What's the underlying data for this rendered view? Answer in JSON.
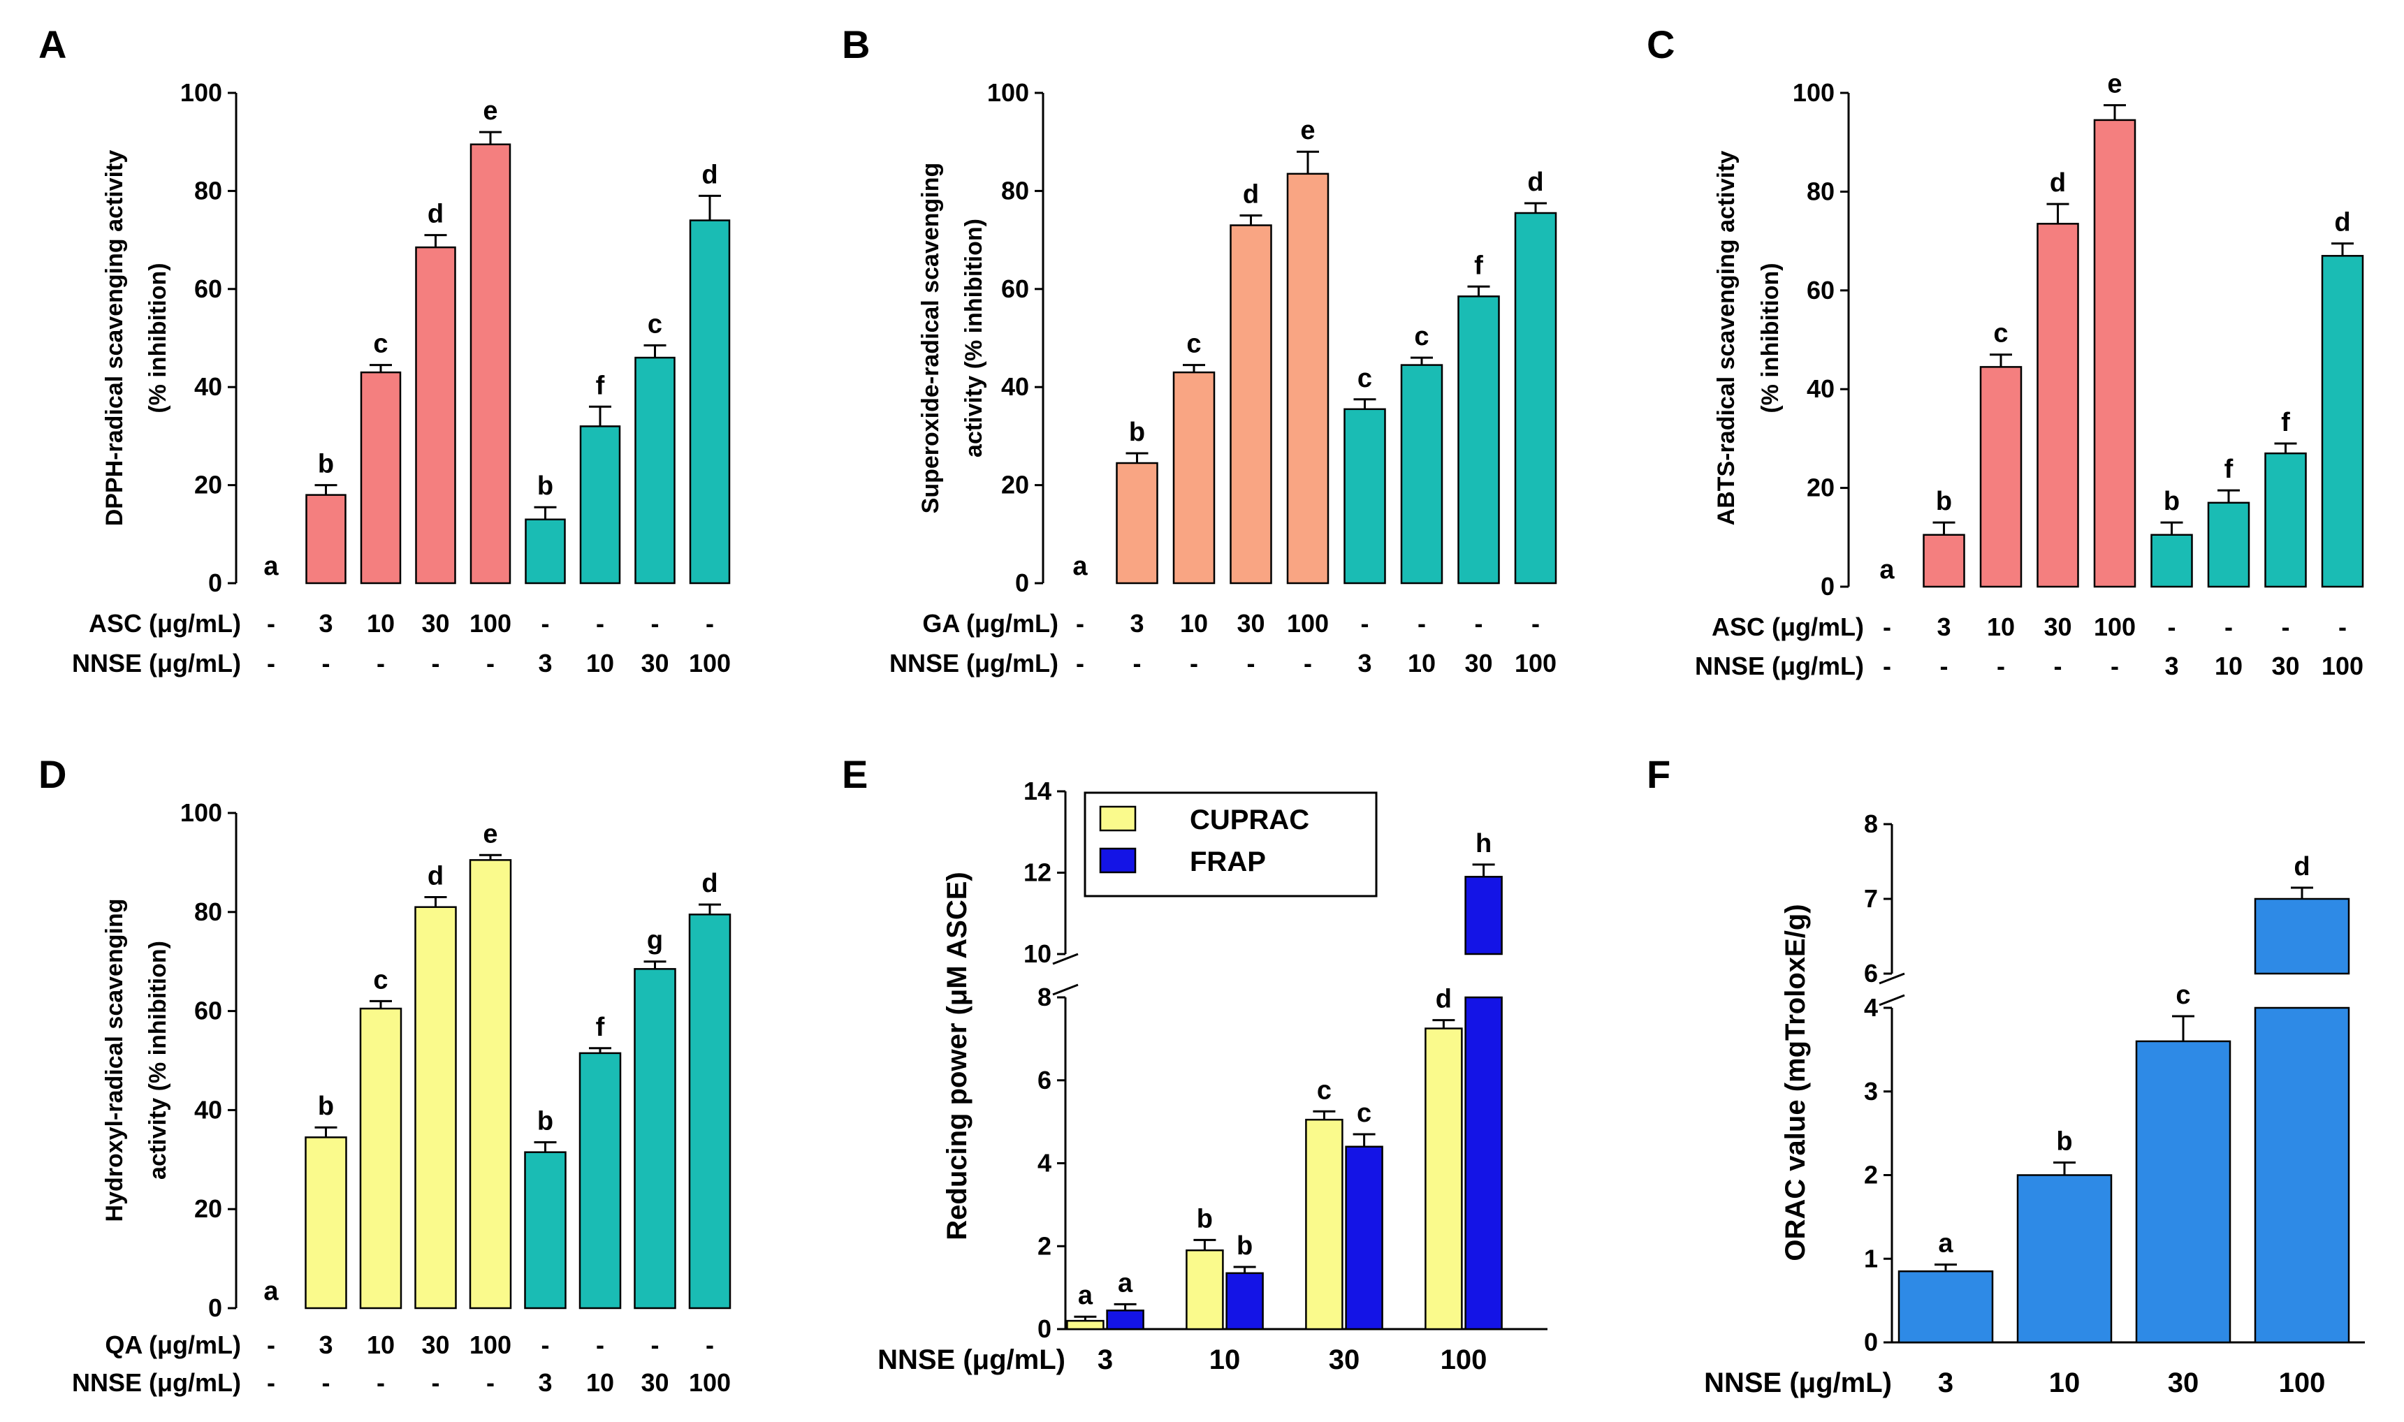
{
  "colors": {
    "red": "#F47F7F",
    "teal": "#1ABCB4",
    "salmon": "#F9A583",
    "yellow": "#FAFA8C",
    "blue": "#1414E6",
    "skyblue": "#2E8AE6"
  },
  "chart_data": [
    {
      "id": "A",
      "type": "bar",
      "panel_label": "A",
      "ylabel_lines": [
        "DPPH-radical scavenging activity",
        "(% inhibition)"
      ],
      "ylim": [
        0,
        100
      ],
      "yticks": [
        0,
        20,
        40,
        60,
        80,
        100
      ],
      "row_labels": [
        "ASC (μg/mL)",
        "NNSE (μg/mL)"
      ],
      "bars": [
        {
          "value": 0,
          "err": 0,
          "sig": "a",
          "color": "red",
          "row1": "-",
          "row2": "-"
        },
        {
          "value": 18,
          "err": 2,
          "sig": "b",
          "color": "red",
          "row1": "3",
          "row2": "-"
        },
        {
          "value": 43,
          "err": 1.5,
          "sig": "c",
          "color": "red",
          "row1": "10",
          "row2": "-"
        },
        {
          "value": 68.5,
          "err": 2.5,
          "sig": "d",
          "color": "red",
          "row1": "30",
          "row2": "-"
        },
        {
          "value": 89.5,
          "err": 2.5,
          "sig": "e",
          "color": "red",
          "row1": "100",
          "row2": "-"
        },
        {
          "value": 13,
          "err": 2.5,
          "sig": "b",
          "color": "teal",
          "row1": "-",
          "row2": "3"
        },
        {
          "value": 32,
          "err": 4,
          "sig": "f",
          "color": "teal",
          "row1": "-",
          "row2": "10"
        },
        {
          "value": 46,
          "err": 2.5,
          "sig": "c",
          "color": "teal",
          "row1": "-",
          "row2": "30"
        },
        {
          "value": 74,
          "err": 5,
          "sig": "d",
          "color": "teal",
          "row1": "-",
          "row2": "100"
        }
      ]
    },
    {
      "id": "B",
      "type": "bar",
      "panel_label": "B",
      "ylabel_lines": [
        "Superoxide-radical scavenging",
        "activity (% inhibition)"
      ],
      "ylim": [
        0,
        100
      ],
      "yticks": [
        0,
        20,
        40,
        60,
        80,
        100
      ],
      "row_labels": [
        "GA (μg/mL)",
        "NNSE (μg/mL)"
      ],
      "bars": [
        {
          "value": 0,
          "err": 0,
          "sig": "a",
          "color": "salmon",
          "row1": "-",
          "row2": "-"
        },
        {
          "value": 24.5,
          "err": 2,
          "sig": "b",
          "color": "salmon",
          "row1": "3",
          "row2": "-"
        },
        {
          "value": 43,
          "err": 1.5,
          "sig": "c",
          "color": "salmon",
          "row1": "10",
          "row2": "-"
        },
        {
          "value": 73,
          "err": 2,
          "sig": "d",
          "color": "salmon",
          "row1": "30",
          "row2": "-"
        },
        {
          "value": 83.5,
          "err": 4.5,
          "sig": "e",
          "color": "salmon",
          "row1": "100",
          "row2": "-"
        },
        {
          "value": 35.5,
          "err": 2,
          "sig": "c",
          "color": "teal",
          "row1": "-",
          "row2": "3"
        },
        {
          "value": 44.5,
          "err": 1.5,
          "sig": "c",
          "color": "teal",
          "row1": "-",
          "row2": "10"
        },
        {
          "value": 58.5,
          "err": 2,
          "sig": "f",
          "color": "teal",
          "row1": "-",
          "row2": "30"
        },
        {
          "value": 75.5,
          "err": 2,
          "sig": "d",
          "color": "teal",
          "row1": "-",
          "row2": "100"
        }
      ]
    },
    {
      "id": "C",
      "type": "bar",
      "panel_label": "C",
      "ylabel_lines": [
        "ABTS-radical scavenging activity",
        "(% inhibition)"
      ],
      "ylim": [
        0,
        100
      ],
      "yticks": [
        0,
        20,
        40,
        60,
        80,
        100
      ],
      "row_labels": [
        "ASC (μg/mL)",
        "NNSE (μg/mL)"
      ],
      "bars": [
        {
          "value": 0,
          "err": 0,
          "sig": "a",
          "color": "red",
          "row1": "-",
          "row2": "-"
        },
        {
          "value": 10.5,
          "err": 2.5,
          "sig": "b",
          "color": "red",
          "row1": "3",
          "row2": "-"
        },
        {
          "value": 44.5,
          "err": 2.5,
          "sig": "c",
          "color": "red",
          "row1": "10",
          "row2": "-"
        },
        {
          "value": 73.5,
          "err": 4,
          "sig": "d",
          "color": "red",
          "row1": "30",
          "row2": "-"
        },
        {
          "value": 94.5,
          "err": 3,
          "sig": "e",
          "color": "red",
          "row1": "100",
          "row2": "-"
        },
        {
          "value": 10.5,
          "err": 2.5,
          "sig": "b",
          "color": "teal",
          "row1": "-",
          "row2": "3"
        },
        {
          "value": 17,
          "err": 2.5,
          "sig": "f",
          "color": "teal",
          "row1": "-",
          "row2": "10"
        },
        {
          "value": 27,
          "err": 2,
          "sig": "f",
          "color": "teal",
          "row1": "-",
          "row2": "30"
        },
        {
          "value": 67,
          "err": 2.5,
          "sig": "d",
          "color": "teal",
          "row1": "-",
          "row2": "100"
        }
      ]
    },
    {
      "id": "D",
      "type": "bar",
      "panel_label": "D",
      "ylabel_lines": [
        "Hydroxyl-radical scavenging",
        "activity (% inhibition)"
      ],
      "ylim": [
        0,
        100
      ],
      "yticks": [
        0,
        20,
        40,
        60,
        80,
        100
      ],
      "row_labels": [
        "QA (μg/mL)",
        "NNSE (μg/mL)"
      ],
      "bars": [
        {
          "value": 0,
          "err": 0,
          "sig": "a",
          "color": "yellow",
          "row1": "-",
          "row2": "-"
        },
        {
          "value": 34.5,
          "err": 2,
          "sig": "b",
          "color": "yellow",
          "row1": "3",
          "row2": "-"
        },
        {
          "value": 60.5,
          "err": 1.5,
          "sig": "c",
          "color": "yellow",
          "row1": "10",
          "row2": "-"
        },
        {
          "value": 81,
          "err": 2,
          "sig": "d",
          "color": "yellow",
          "row1": "30",
          "row2": "-"
        },
        {
          "value": 90.5,
          "err": 1,
          "sig": "e",
          "color": "yellow",
          "row1": "100",
          "row2": "-"
        },
        {
          "value": 31.5,
          "err": 2,
          "sig": "b",
          "color": "teal",
          "row1": "-",
          "row2": "3"
        },
        {
          "value": 51.5,
          "err": 1,
          "sig": "f",
          "color": "teal",
          "row1": "-",
          "row2": "10"
        },
        {
          "value": 68.5,
          "err": 1.5,
          "sig": "g",
          "color": "teal",
          "row1": "-",
          "row2": "30"
        },
        {
          "value": 79.5,
          "err": 2,
          "sig": "d",
          "color": "teal",
          "row1": "-",
          "row2": "100"
        }
      ]
    },
    {
      "id": "E",
      "type": "bar",
      "panel_label": "E",
      "ylabel": "Reducing power (μM ASCE)",
      "xrow_label": "NNSE (μg/mL)",
      "categories": [
        "3",
        "10",
        "30",
        "100"
      ],
      "axis_break": {
        "lower": [
          0,
          8
        ],
        "upper": [
          10,
          14
        ]
      },
      "yticks_lower": [
        0,
        2,
        4,
        6,
        8
      ],
      "yticks_upper": [
        10,
        12,
        14
      ],
      "legend": [
        {
          "label": "CUPRAC",
          "color": "yellow"
        },
        {
          "label": "FRAP",
          "color": "blue"
        }
      ],
      "series": [
        {
          "name": "CUPRAC",
          "color": "yellow",
          "values": [
            0.2,
            1.9,
            5.05,
            7.25
          ],
          "err": [
            0.1,
            0.25,
            0.2,
            0.2
          ],
          "sig": [
            "a",
            "b",
            "c",
            "d"
          ]
        },
        {
          "name": "FRAP",
          "color": "blue",
          "values": [
            0.45,
            1.35,
            4.4,
            11.9
          ],
          "err": [
            0.15,
            0.15,
            0.3,
            0.3
          ],
          "sig": [
            "a",
            "b",
            "c",
            "h"
          ]
        }
      ]
    },
    {
      "id": "F",
      "type": "bar",
      "panel_label": "F",
      "ylabel": "ORAC value (mgTroloxE/g)",
      "xrow_label": "NNSE (μg/mL)",
      "categories": [
        "3",
        "10",
        "30",
        "100"
      ],
      "axis_break": {
        "lower": [
          0,
          4
        ],
        "upper": [
          6,
          8
        ]
      },
      "yticks_lower": [
        0,
        1,
        2,
        3,
        4
      ],
      "yticks_upper": [
        6,
        7,
        8
      ],
      "series": [
        {
          "name": "ORAC",
          "color": "skyblue",
          "values": [
            0.85,
            2.0,
            3.6,
            7.0
          ],
          "err": [
            0.08,
            0.15,
            0.3,
            0.15
          ],
          "sig": [
            "a",
            "b",
            "c",
            "d"
          ]
        }
      ]
    }
  ]
}
